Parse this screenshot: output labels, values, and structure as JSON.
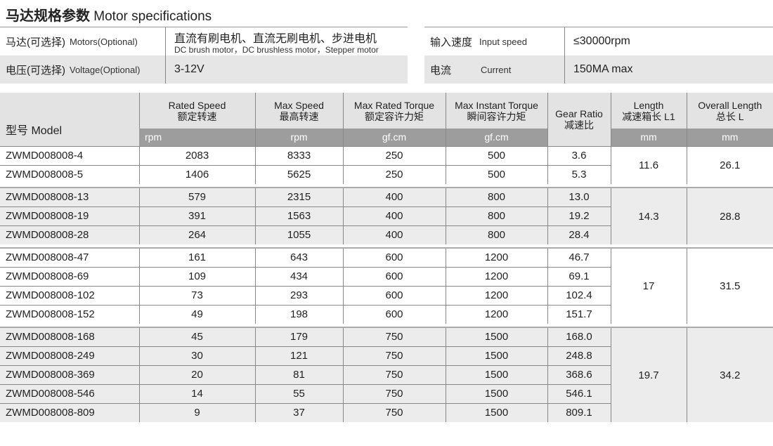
{
  "title": {
    "cn": "马达规格参数",
    "en": "Motor specifications"
  },
  "spec_left": [
    {
      "label_cn": "马达(可选择)",
      "label_en": "Motors(Optional)",
      "value": "直流有刷电机、直流无刷电机、步进电机",
      "value_sub": "DC brush motor，DC brushless motor，Stepper motor"
    },
    {
      "label_cn": "电压(可选择)",
      "label_en": "Voltage(Optional)",
      "value": "3-12V",
      "value_sub": ""
    }
  ],
  "spec_right": [
    {
      "label_cn": "输入速度",
      "label_en": "Input speed",
      "value": "≤30000rpm"
    },
    {
      "label_cn": "电流",
      "label_en": "Current",
      "value": "150MA max"
    }
  ],
  "table": {
    "model_header": "型号 Model",
    "headers": [
      {
        "en": "Rated Speed",
        "cn": "额定转速",
        "unit": "rpm"
      },
      {
        "en": "Max Speed",
        "cn": "最高转速",
        "unit": "rpm"
      },
      {
        "en": "Max Rated Torque",
        "cn": "额定容许力矩",
        "unit": "gf.cm"
      },
      {
        "en": "Max Instant Torque",
        "cn": "瞬间容许力矩",
        "unit": "gf.cm"
      },
      {
        "en": "Gear Ratio",
        "cn": "减速比",
        "unit": ""
      },
      {
        "en": "Length",
        "cn": "减速箱长 L1",
        "unit": "mm"
      },
      {
        "en": "Overall Length",
        "cn": "总长 L",
        "unit": "mm"
      }
    ],
    "groups": [
      {
        "length": "11.6",
        "overall": "26.1",
        "rows": [
          [
            "ZWMD008008-4",
            "2083",
            "8333",
            "250",
            "500",
            "3.6"
          ],
          [
            "ZWMD008008-5",
            "1406",
            "5625",
            "250",
            "500",
            "5.3"
          ]
        ]
      },
      {
        "length": "14.3",
        "overall": "28.8",
        "rows": [
          [
            "ZWMD008008-13",
            "579",
            "2315",
            "400",
            "800",
            "13.0"
          ],
          [
            "ZWMD008008-19",
            "391",
            "1563",
            "400",
            "800",
            "19.2"
          ],
          [
            "ZWMD008008-28",
            "264",
            "1055",
            "400",
            "800",
            "28.4"
          ]
        ]
      },
      {
        "length": "17",
        "overall": "31.5",
        "rows": [
          [
            "ZWMD008008-47",
            "161",
            "643",
            "600",
            "1200",
            "46.7"
          ],
          [
            "ZWMD008008-69",
            "109",
            "434",
            "600",
            "1200",
            "69.1"
          ],
          [
            "ZWMD008008-102",
            "73",
            "293",
            "600",
            "1200",
            "102.4"
          ],
          [
            "ZWMD008008-152",
            "49",
            "198",
            "600",
            "1200",
            "151.7"
          ]
        ]
      },
      {
        "length": "19.7",
        "overall": "34.2",
        "rows": [
          [
            "ZWMD008008-168",
            "45",
            "179",
            "750",
            "1500",
            "168.0"
          ],
          [
            "ZWMD008008-249",
            "30",
            "121",
            "750",
            "1500",
            "248.8"
          ],
          [
            "ZWMD008008-369",
            "20",
            "81",
            "750",
            "1500",
            "368.6"
          ],
          [
            "ZWMD008008-546",
            "14",
            "55",
            "750",
            "1500",
            "546.1"
          ],
          [
            "ZWMD008008-809",
            "9",
            "37",
            "750",
            "1500",
            "809.1"
          ]
        ]
      }
    ]
  }
}
